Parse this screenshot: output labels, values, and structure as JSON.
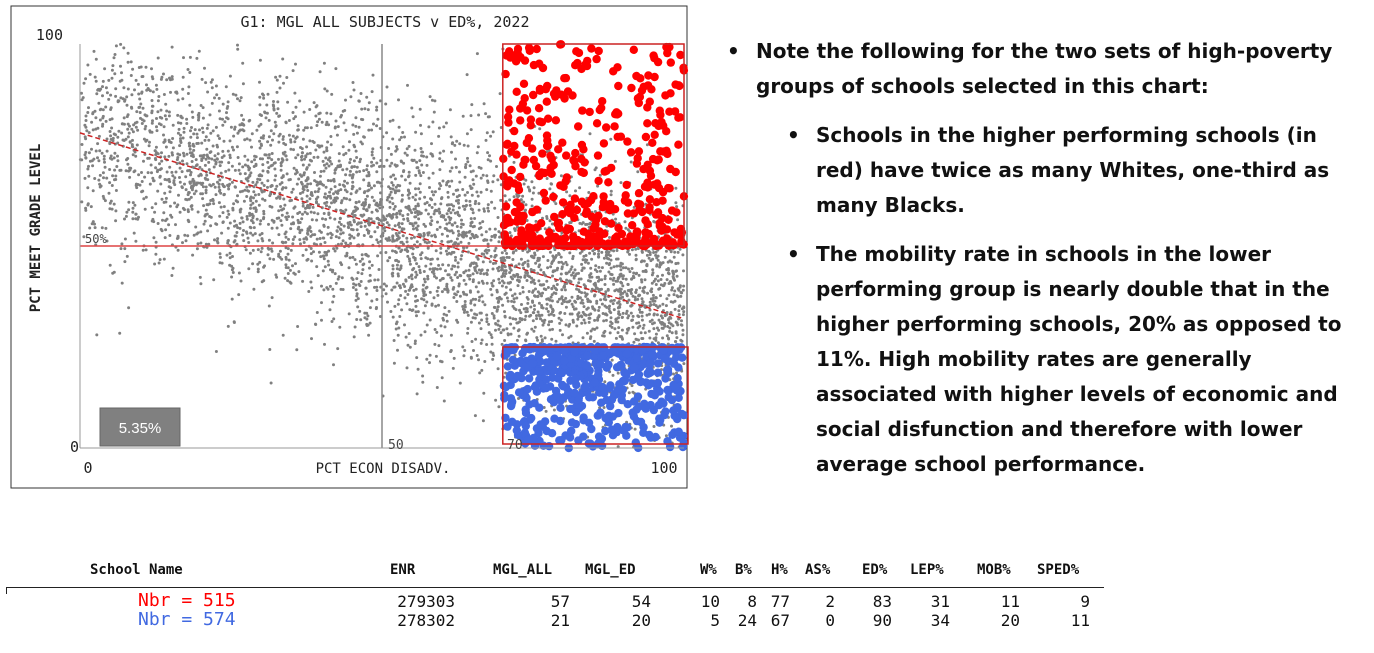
{
  "chart_data": {
    "type": "scatter",
    "title": "G1: MGL ALL SUBJECTS v ED%, 2022",
    "xlabel": "PCT ECON DISADV.",
    "ylabel": "PCT MEET GRADE LEVEL",
    "xlim": [
      0,
      100
    ],
    "ylim": [
      0,
      100
    ],
    "x_ticks": [
      "0",
      "100"
    ],
    "y_ticks": [
      "0",
      "100"
    ],
    "reference_lines": [
      {
        "axis": "x",
        "value": 50,
        "label": "50"
      },
      {
        "axis": "y",
        "value": 50,
        "label": "50%"
      }
    ],
    "trend_line": {
      "x": [
        0,
        100
      ],
      "y": [
        78,
        32
      ],
      "color": "#cc2222"
    },
    "selection_boxes": [
      {
        "name": "higher performing high-poverty schools",
        "x_range": [
          70,
          100
        ],
        "y_range": [
          50,
          100
        ],
        "color": "#ff0000",
        "count": 515
      },
      {
        "name": "lower performing high-poverty schools",
        "x_range": [
          70,
          100
        ],
        "y_range": [
          0,
          25
        ],
        "color": "#4169e1",
        "label": "70",
        "count": 574
      }
    ],
    "series": [
      {
        "name": "All schools",
        "color": "#808080",
        "approx_points": 4500
      },
      {
        "name": "Nbr = 515",
        "color": "#ff0000",
        "count": 515
      },
      {
        "name": "Nbr = 574",
        "color": "#4169e1",
        "count": 574
      }
    ],
    "annotation_box": {
      "text": "5.35%",
      "bg": "#808080"
    }
  },
  "notes": {
    "main": "Note the following for the two sets of high-poverty groups of schools selected in this chart:",
    "sub1": "Schools in the higher performing schools (in red) have twice as many Whites, one-third as many Blacks.",
    "sub2": "The mobility rate in schools in the lower performing group is nearly double that in the higher performing schools, 20% as opposed to 11%. High mobility rates are generally associated with higher levels of economic and social disfunction and therefore with lower average school performance."
  },
  "table": {
    "headers": [
      "School Name",
      "ENR",
      "MGL_ALL",
      "MGL_ED",
      "W%",
      "B%",
      "H%",
      "AS%",
      "ED%",
      "LEP%",
      "MOB%",
      "SPED%"
    ],
    "rows": [
      {
        "label": "Nbr = 515",
        "color": "#ff0000",
        "values": [
          "279303",
          "57",
          "54",
          "10",
          "8",
          "77",
          "2",
          "83",
          "31",
          "11",
          "9"
        ]
      },
      {
        "label": "Nbr = 574",
        "color": "#4169e1",
        "values": [
          "278302",
          "21",
          "20",
          "5",
          "24",
          "67",
          "0",
          "90",
          "34",
          "20",
          "11"
        ]
      }
    ]
  }
}
